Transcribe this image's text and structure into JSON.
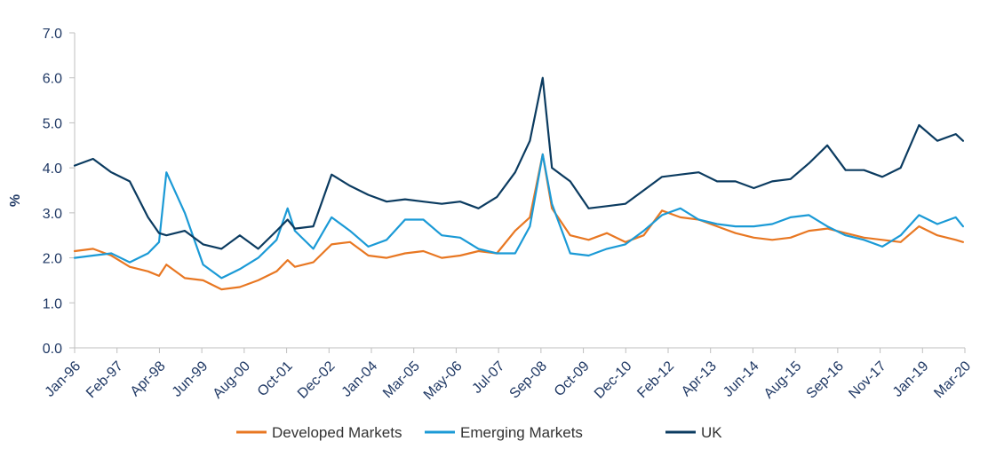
{
  "chart_data": {
    "type": "line",
    "ylabel": "%",
    "ylim": [
      0,
      7
    ],
    "yticks": [
      "0.0",
      "1.0",
      "2.0",
      "3.0",
      "4.0",
      "5.0",
      "6.0",
      "7.0"
    ],
    "xticks": [
      "Jan-96",
      "Feb-97",
      "Apr-98",
      "Jun-99",
      "Aug-00",
      "Oct-01",
      "Dec-02",
      "Jan-04",
      "Mar-05",
      "May-06",
      "Jul-07",
      "Sep-08",
      "Oct-09",
      "Dec-10",
      "Feb-12",
      "Apr-13",
      "Jun-14",
      "Aug-15",
      "Sep-16",
      "Nov-17",
      "Jan-19",
      "Mar-20"
    ],
    "grid": false,
    "legend": "bottom",
    "x": [
      1996.0,
      1996.5,
      1997.0,
      1997.5,
      1998.0,
      1998.3,
      1998.5,
      1999.0,
      1999.5,
      2000.0,
      2000.5,
      2001.0,
      2001.5,
      2001.8,
      2002.0,
      2002.5,
      2003.0,
      2003.5,
      2004.0,
      2004.5,
      2005.0,
      2005.5,
      2006.0,
      2006.5,
      2007.0,
      2007.5,
      2008.0,
      2008.4,
      2008.75,
      2009.0,
      2009.5,
      2010.0,
      2010.5,
      2011.0,
      2011.5,
      2012.0,
      2012.5,
      2013.0,
      2013.5,
      2014.0,
      2014.5,
      2015.0,
      2015.5,
      2016.0,
      2016.5,
      2017.0,
      2017.5,
      2018.0,
      2018.5,
      2019.0,
      2019.5,
      2020.0,
      2020.2
    ],
    "series": [
      {
        "name": "Developed Markets",
        "color": "#e87722",
        "values": [
          2.15,
          2.2,
          2.05,
          1.8,
          1.7,
          1.6,
          1.85,
          1.55,
          1.5,
          1.3,
          1.35,
          1.5,
          1.7,
          1.95,
          1.8,
          1.9,
          2.3,
          2.35,
          2.05,
          2.0,
          2.1,
          2.15,
          2.0,
          2.05,
          2.15,
          2.1,
          2.6,
          2.9,
          4.3,
          3.1,
          2.5,
          2.4,
          2.55,
          2.35,
          2.5,
          3.05,
          2.9,
          2.85,
          2.7,
          2.55,
          2.45,
          2.4,
          2.45,
          2.6,
          2.65,
          2.55,
          2.45,
          2.4,
          2.35,
          2.7,
          2.5,
          2.4,
          2.35
        ]
      },
      {
        "name": "Emerging Markets",
        "color": "#1b9ad6",
        "values": [
          2.0,
          2.05,
          2.1,
          1.9,
          2.1,
          2.35,
          3.9,
          3.0,
          1.85,
          1.55,
          1.75,
          2.0,
          2.4,
          3.1,
          2.6,
          2.2,
          2.9,
          2.6,
          2.25,
          2.4,
          2.85,
          2.85,
          2.5,
          2.45,
          2.2,
          2.1,
          2.1,
          2.7,
          4.3,
          3.2,
          2.1,
          2.05,
          2.2,
          2.3,
          2.6,
          2.95,
          3.1,
          2.85,
          2.75,
          2.7,
          2.7,
          2.75,
          2.9,
          2.95,
          2.7,
          2.5,
          2.4,
          2.25,
          2.5,
          2.95,
          2.75,
          2.9,
          2.7
        ]
      },
      {
        "name": "UK",
        "color": "#0b3b60",
        "values": [
          4.05,
          4.2,
          3.9,
          3.7,
          2.9,
          2.55,
          2.5,
          2.6,
          2.3,
          2.2,
          2.5,
          2.2,
          2.6,
          2.85,
          2.65,
          2.7,
          3.85,
          3.6,
          3.4,
          3.25,
          3.3,
          3.25,
          3.2,
          3.25,
          3.1,
          3.35,
          3.9,
          4.6,
          6.0,
          4.0,
          3.7,
          3.1,
          3.15,
          3.2,
          3.5,
          3.8,
          3.85,
          3.9,
          3.7,
          3.7,
          3.55,
          3.7,
          3.75,
          4.1,
          4.5,
          3.95,
          3.95,
          3.8,
          4.0,
          4.95,
          4.6,
          4.75,
          4.6
        ]
      }
    ]
  }
}
